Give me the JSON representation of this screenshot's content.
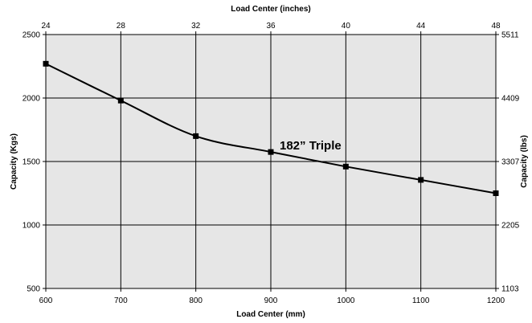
{
  "chart_data": {
    "type": "line",
    "title": "",
    "xlabel": "Load Center (mm)",
    "x2label": "Load Center (inches)",
    "ylabel": "Capacity (Kgs)",
    "y2label": "Capacity (lbs)",
    "xlim": [
      600,
      1200
    ],
    "ylim": [
      500,
      2500
    ],
    "x_ticks": [
      600,
      700,
      800,
      900,
      1000,
      1100,
      1200
    ],
    "y_ticks": [
      500,
      1000,
      1500,
      2000,
      2500
    ],
    "x2_ticks": [
      "24",
      "28",
      "32",
      "36",
      "40",
      "44",
      "48"
    ],
    "y2_ticks": [
      "1103",
      "2205",
      "3307",
      "4409",
      "5511"
    ],
    "grid": true,
    "plot_background": "#e6e6e6",
    "line_color": "#000000",
    "marker": "square",
    "series": [
      {
        "name": "182” Triple",
        "x": [
          600,
          700,
          800,
          900,
          1000,
          1100,
          1200
        ],
        "values": [
          2270,
          1980,
          1700,
          1575,
          1460,
          1355,
          1250
        ]
      }
    ]
  }
}
